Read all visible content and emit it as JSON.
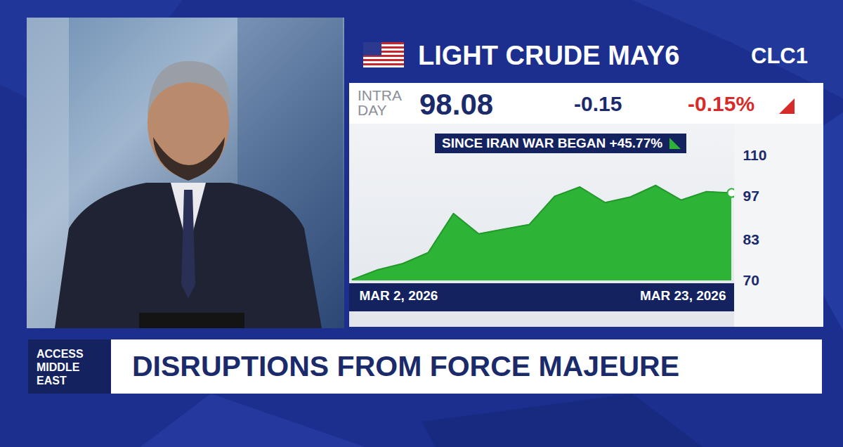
{
  "chart_data": {
    "type": "area",
    "title": "LIGHT CRUDE MAY6",
    "subtitle": "CLC1",
    "annotation": "SINCE IRAN WAR BEGAN +45.77%",
    "categories": [
      "MAR 2, 2026",
      null,
      null,
      null,
      null,
      null,
      null,
      null,
      null,
      null,
      null,
      null,
      null,
      null,
      null,
      "MAR 23, 2026"
    ],
    "values": [
      70.4,
      73.5,
      75.5,
      79.0,
      91.5,
      85.0,
      86.5,
      88.0,
      97.0,
      100.0,
      95.0,
      96.8,
      100.5,
      95.8,
      98.5,
      98.08
    ],
    "color": "#2db336",
    "ylim": [
      70,
      110
    ],
    "yticks": [
      70,
      83,
      97,
      110
    ]
  },
  "quote": {
    "label": "INTRA DAY",
    "price": "98.08",
    "change": "-0.15",
    "change_percent": "-0.15%"
  },
  "banner": {
    "show": "ACCESS MIDDLE EAST",
    "headline": "DISRUPTIONS FROM FORCE MAJEURE"
  }
}
